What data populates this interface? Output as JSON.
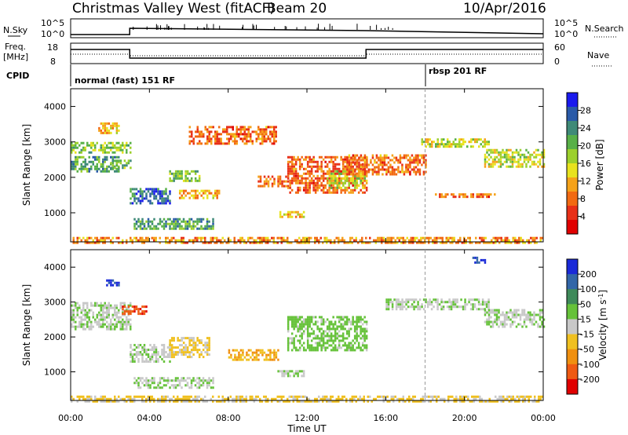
{
  "header": {
    "title": "Christmas Valley West (fitACF)",
    "beam": "Beam 20",
    "date": "10/Apr/2016"
  },
  "noise_panel": {
    "left_label": "N.Sky",
    "left_ticks": [
      "10^5",
      "10^0"
    ],
    "right_label": "N.Search",
    "right_ticks": [
      "10^5",
      "10^0"
    ]
  },
  "freq_panel": {
    "left_label_1": "Freq.",
    "left_label_2": "[MHz]",
    "left_ticks": [
      "18",
      "8"
    ],
    "right_label": "Nave",
    "right_ticks": [
      "60",
      "0"
    ]
  },
  "cpid": {
    "label": "CPID",
    "modes": [
      "normal (fast) 151 RF",
      "rbsp 201 RF"
    ],
    "mode_change_hour": 18
  },
  "time_axis": {
    "label": "Time UT",
    "ticks": [
      "00:00",
      "04:00",
      "08:00",
      "12:00",
      "16:00",
      "20:00",
      "00:00"
    ]
  },
  "chart_data": [
    {
      "type": "heatmap",
      "panel": "power",
      "xlabel": "Time UT",
      "ylabel": "Slant Range [km]",
      "yticks": [
        "1000",
        "2000",
        "3000",
        "4000"
      ],
      "xlim_hours": [
        0,
        24
      ],
      "ylim_km": [
        180,
        4500
      ],
      "colorbar_label": "Power [dB]",
      "colorbar_ticks": [
        "4",
        "8",
        "12",
        "16",
        "20",
        "24",
        "28"
      ],
      "colorbar_colors": [
        "#1a1aee",
        "#2a5aa8",
        "#3f8a78",
        "#58b048",
        "#9cd02c",
        "#e8e21e",
        "#f5a21a",
        "#f26a12",
        "#e83018",
        "#e00000"
      ],
      "echo_regions": [
        {
          "t": [
            0.0,
            3.0
          ],
          "r": [
            2700,
            3000
          ],
          "power": 18
        },
        {
          "t": [
            0.0,
            2.4
          ],
          "r": [
            2200,
            2600
          ],
          "power": 22
        },
        {
          "t": [
            2.0,
            3.0
          ],
          "r": [
            2300,
            2500
          ],
          "power": 20
        },
        {
          "t": [
            3.0,
            5.0
          ],
          "r": [
            1300,
            1700
          ],
          "power": 26
        },
        {
          "t": [
            5.0,
            6.5
          ],
          "r": [
            1900,
            2200
          ],
          "power": 20
        },
        {
          "t": [
            5.5,
            7.5
          ],
          "r": [
            1450,
            1650
          ],
          "power": 12
        },
        {
          "t": [
            3.2,
            7.2
          ],
          "r": [
            550,
            850
          ],
          "power": 22
        },
        {
          "t": [
            1.4,
            2.4
          ],
          "r": [
            3250,
            3550
          ],
          "power": 12
        },
        {
          "t": [
            6.0,
            10.4
          ],
          "r": [
            2950,
            3450
          ],
          "power": 8
        },
        {
          "t": [
            9.5,
            11.0
          ],
          "r": [
            1750,
            2050
          ],
          "power": 8
        },
        {
          "t": [
            10.5,
            11.8
          ],
          "r": [
            900,
            1050
          ],
          "power": 12
        },
        {
          "t": [
            11.0,
            15.0
          ],
          "r": [
            1600,
            2600
          ],
          "power": 8
        },
        {
          "t": [
            13.0,
            14.9
          ],
          "r": [
            1700,
            2200
          ],
          "power": 16
        },
        {
          "t": [
            14.0,
            18.0
          ],
          "r": [
            2100,
            2650
          ],
          "power": 8
        },
        {
          "t": [
            17.8,
            21.2
          ],
          "r": [
            2900,
            3100
          ],
          "power": 16
        },
        {
          "t": [
            21.0,
            24.0
          ],
          "r": [
            2300,
            2800
          ],
          "power": 16
        },
        {
          "t": [
            18.5,
            21.5
          ],
          "r": [
            1450,
            1550
          ],
          "power": 8
        },
        {
          "t": [
            0.0,
            24.0
          ],
          "r": [
            180,
            320
          ],
          "power": 10
        }
      ]
    },
    {
      "type": "heatmap",
      "panel": "velocity",
      "xlabel": "Time UT",
      "ylabel": "Slant Range [km]",
      "yticks": [
        "1000",
        "2000",
        "3000",
        "4000"
      ],
      "xlim_hours": [
        0,
        24
      ],
      "ylim_km": [
        180,
        4500
      ],
      "colorbar_label": "Velocity [m s^-1]",
      "colorbar_ticks": [
        "200",
        "100",
        "50",
        "15",
        "-15",
        "-50",
        "-100",
        "-200"
      ],
      "colorbar_colors": [
        "#1a2ad8",
        "#3266a8",
        "#3f8a5a",
        "#66c23a",
        "#c8c8c8",
        "#f0c020",
        "#f09010",
        "#ef5a12",
        "#e00000"
      ],
      "echo_regions": [
        {
          "t": [
            0.0,
            3.0
          ],
          "r": [
            2200,
            3000
          ],
          "velocity": 0
        },
        {
          "t": [
            3.0,
            5.0
          ],
          "r": [
            1300,
            1800
          ],
          "velocity": 0
        },
        {
          "t": [
            5.0,
            7.0
          ],
          "r": [
            1400,
            2000
          ],
          "velocity": -30
        },
        {
          "t": [
            3.2,
            7.2
          ],
          "r": [
            550,
            850
          ],
          "velocity": 0
        },
        {
          "t": [
            2.6,
            3.8
          ],
          "r": [
            2650,
            2900
          ],
          "velocity": -200
        },
        {
          "t": [
            1.8,
            2.4
          ],
          "r": [
            3450,
            3650
          ],
          "velocity": 200
        },
        {
          "t": [
            8.0,
            10.5
          ],
          "r": [
            1350,
            1650
          ],
          "velocity": -60
        },
        {
          "t": [
            10.5,
            11.8
          ],
          "r": [
            900,
            1050
          ],
          "velocity": 0
        },
        {
          "t": [
            11.0,
            15.0
          ],
          "r": [
            1600,
            2600
          ],
          "velocity": 20
        },
        {
          "t": [
            16.0,
            21.2
          ],
          "r": [
            2800,
            3100
          ],
          "velocity": 0
        },
        {
          "t": [
            21.0,
            24.0
          ],
          "r": [
            2300,
            2800
          ],
          "velocity": 0
        },
        {
          "t": [
            20.4,
            21.0
          ],
          "r": [
            4100,
            4300
          ],
          "velocity": 200
        },
        {
          "t": [
            0.0,
            24.0
          ],
          "r": [
            180,
            320
          ],
          "velocity": -30
        }
      ]
    }
  ]
}
